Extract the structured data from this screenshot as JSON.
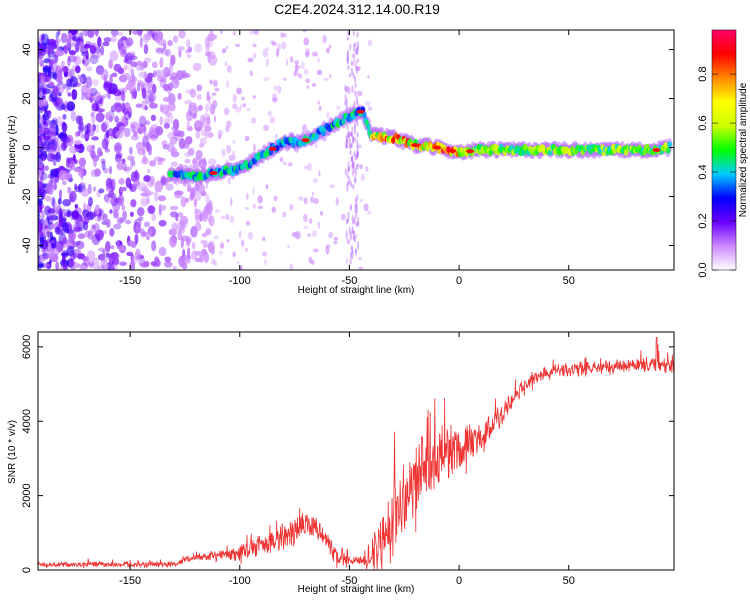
{
  "title": "C2E4.2024.312.14.00.R19",
  "chart_data": [
    {
      "type": "heatmap",
      "name": "spectrogram",
      "xlabel": "Height of straight line (km)",
      "ylabel": "Frequency (Hz)",
      "xlim": [
        -192,
        98
      ],
      "ylim": [
        -50,
        48
      ],
      "xticks": [
        -150,
        -100,
        -50,
        0,
        50
      ],
      "yticks": [
        40,
        20,
        0,
        -20,
        -40
      ],
      "colorbar": {
        "label": "Normalized spectral amplitude",
        "range": [
          0,
          0.98
        ],
        "ticks": [
          "0.0",
          "0.2",
          "0.4",
          "0.6",
          "0.8"
        ],
        "tick_values": [
          0,
          0.2,
          0.4,
          0.6,
          0.8
        ],
        "colors": [
          "#ffffff",
          "#cc88ff",
          "#6a00ff",
          "#0000ff",
          "#00ccff",
          "#00ff00",
          "#ccff00",
          "#ffff00",
          "#ff8800",
          "#ff0000",
          "#ff0066"
        ]
      },
      "ridge": [
        {
          "x": -130,
          "f": -11
        },
        {
          "x": -120,
          "f": -12
        },
        {
          "x": -110,
          "f": -10
        },
        {
          "x": -100,
          "f": -9
        },
        {
          "x": -90,
          "f": -3
        },
        {
          "x": -80,
          "f": 2
        },
        {
          "x": -70,
          "f": 3
        },
        {
          "x": -60,
          "f": 8
        },
        {
          "x": -50,
          "f": 13
        },
        {
          "x": -44,
          "f": 15
        },
        {
          "x": -40,
          "f": 5
        },
        {
          "x": -30,
          "f": 4
        },
        {
          "x": -20,
          "f": 1
        },
        {
          "x": -10,
          "f": 0
        },
        {
          "x": 0,
          "f": -2
        },
        {
          "x": 10,
          "f": -1
        },
        {
          "x": 30,
          "f": -1
        },
        {
          "x": 60,
          "f": -1
        },
        {
          "x": 90,
          "f": -1
        },
        {
          "x": 96,
          "f": 0
        }
      ]
    },
    {
      "type": "line",
      "name": "snr",
      "xlabel": "Height of straight line (km)",
      "ylabel": "SNR (10 * v/v)",
      "xlim": [
        -192,
        98
      ],
      "ylim": [
        0,
        6400
      ],
      "xticks": [
        -150,
        -100,
        -50,
        0,
        50
      ],
      "yticks": [
        0,
        2000,
        4000,
        6000
      ],
      "color": "#ee3333",
      "trend": [
        {
          "x": -192,
          "y": 150
        },
        {
          "x": -130,
          "y": 150
        },
        {
          "x": -120,
          "y": 350
        },
        {
          "x": -100,
          "y": 450
        },
        {
          "x": -80,
          "y": 900
        },
        {
          "x": -70,
          "y": 1300
        },
        {
          "x": -62,
          "y": 950
        },
        {
          "x": -55,
          "y": 300
        },
        {
          "x": -42,
          "y": 250
        },
        {
          "x": -33,
          "y": 1000
        },
        {
          "x": -28,
          "y": 1800
        },
        {
          "x": -20,
          "y": 2500
        },
        {
          "x": -10,
          "y": 3000
        },
        {
          "x": 0,
          "y": 3200
        },
        {
          "x": 10,
          "y": 3600
        },
        {
          "x": 20,
          "y": 4200
        },
        {
          "x": 30,
          "y": 5000
        },
        {
          "x": 40,
          "y": 5350
        },
        {
          "x": 60,
          "y": 5450
        },
        {
          "x": 80,
          "y": 5500
        },
        {
          "x": 98,
          "y": 5550
        }
      ],
      "spread": [
        {
          "x": -192,
          "a": 80
        },
        {
          "x": -120,
          "a": 90
        },
        {
          "x": -100,
          "a": 250
        },
        {
          "x": -75,
          "a": 500
        },
        {
          "x": -60,
          "a": 300
        },
        {
          "x": -45,
          "a": 100
        },
        {
          "x": -30,
          "a": 1400
        },
        {
          "x": -10,
          "a": 900
        },
        {
          "x": 10,
          "a": 500
        },
        {
          "x": 30,
          "a": 250
        },
        {
          "x": 80,
          "a": 200
        },
        {
          "x": 98,
          "a": 400
        }
      ],
      "peak_y": 6250
    }
  ]
}
